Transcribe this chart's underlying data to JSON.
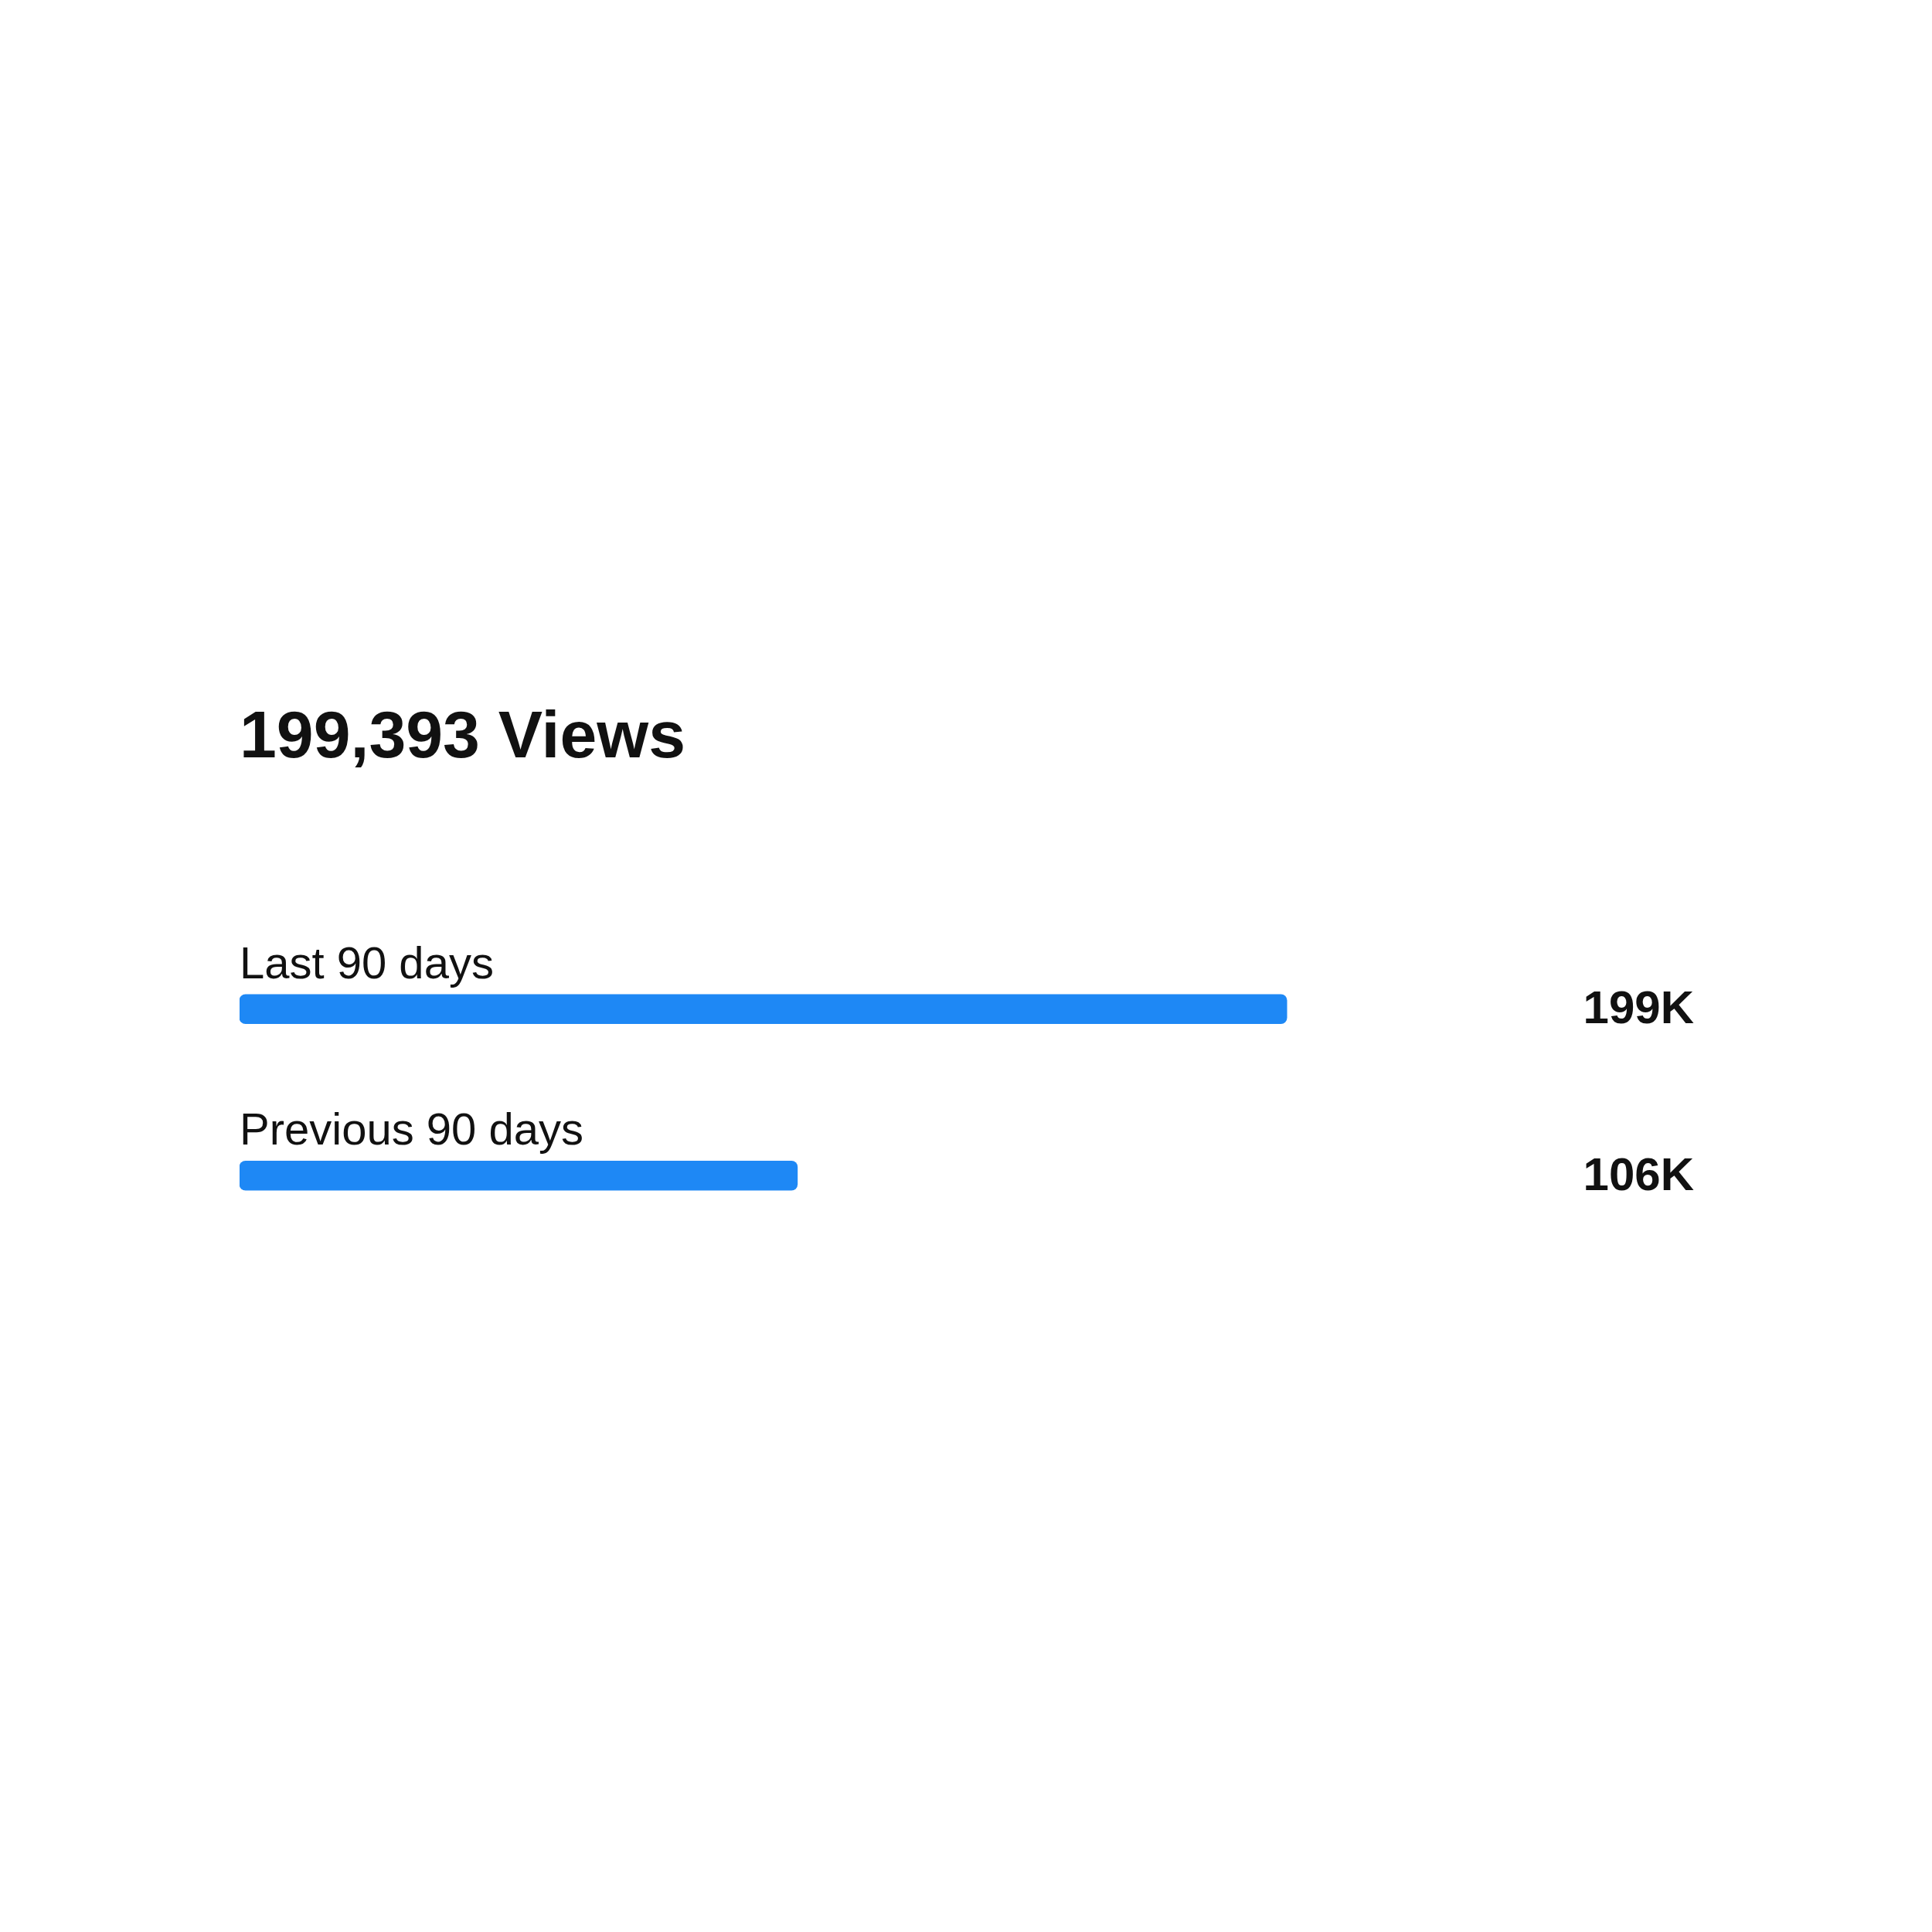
{
  "chart_data": {
    "type": "bar",
    "orientation": "horizontal",
    "title": "199,393 Views",
    "categories": [
      "Last 90 days",
      "Previous 90 days"
    ],
    "values": [
      199000,
      106000
    ],
    "value_labels": [
      "199K",
      "106K"
    ],
    "color": "#1e88f5"
  }
}
